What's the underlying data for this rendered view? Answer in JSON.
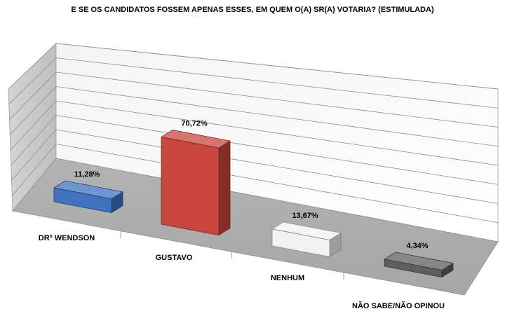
{
  "chart_data": {
    "type": "bar",
    "title": "E SE OS CANDIDATOS FOSSEM APENAS ESSES, EM QUEM O(A) SR(A) VOTARIA? (ESTIMULADA)",
    "categories": [
      "DRº WENDSON",
      "GUSTAVO",
      "NENHUM",
      "NÃO SABE/NÃO OPINOU"
    ],
    "values": [
      11.28,
      70.72,
      13.67,
      4.34
    ],
    "data_labels": [
      "11,28%",
      "70,72%",
      "13,67%",
      "4,34%"
    ],
    "bar_colors": [
      "#3f73c0",
      "#c9473f",
      "#f2f2f2",
      "#5f5f5f"
    ],
    "ylim": [
      0,
      100
    ],
    "grid": true,
    "legend": "none",
    "style": "3d-perspective"
  }
}
